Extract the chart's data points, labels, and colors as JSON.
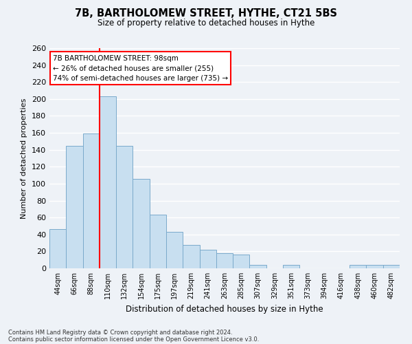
{
  "title": "7B, BARTHOLOMEW STREET, HYTHE, CT21 5BS",
  "subtitle": "Size of property relative to detached houses in Hythe",
  "xlabel": "Distribution of detached houses by size in Hythe",
  "ylabel": "Number of detached properties",
  "bar_color": "#c8dff0",
  "bar_edge_color": "#7aaacb",
  "categories": [
    "44sqm",
    "66sqm",
    "88sqm",
    "110sqm",
    "132sqm",
    "154sqm",
    "175sqm",
    "197sqm",
    "219sqm",
    "241sqm",
    "263sqm",
    "285sqm",
    "307sqm",
    "329sqm",
    "351sqm",
    "373sqm",
    "394sqm",
    "416sqm",
    "438sqm",
    "460sqm",
    "482sqm"
  ],
  "values": [
    46,
    145,
    159,
    203,
    145,
    106,
    63,
    43,
    28,
    22,
    18,
    16,
    4,
    0,
    4,
    0,
    0,
    0,
    4,
    4,
    4
  ],
  "ylim": [
    0,
    260
  ],
  "yticks": [
    0,
    20,
    40,
    60,
    80,
    100,
    120,
    140,
    160,
    180,
    200,
    220,
    240,
    260
  ],
  "red_line_x": 2.5,
  "annotation_text_line1": "7B BARTHOLOMEW STREET: 98sqm",
  "annotation_text_line2": "← 26% of detached houses are smaller (255)",
  "annotation_text_line3": "74% of semi-detached houses are larger (735) →",
  "footer_line1": "Contains HM Land Registry data © Crown copyright and database right 2024.",
  "footer_line2": "Contains public sector information licensed under the Open Government Licence v3.0.",
  "background_color": "#eef2f7",
  "grid_color": "#ffffff"
}
